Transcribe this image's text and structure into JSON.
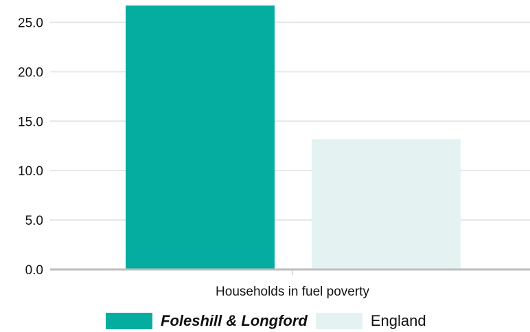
{
  "chart_data": {
    "type": "bar",
    "categories": [
      "Households in fuel poverty"
    ],
    "series": [
      {
        "name": "Foleshill & Longford",
        "values": [
          26.7
        ],
        "color": "#05ada0",
        "highlight": true
      },
      {
        "name": "England",
        "values": [
          13.2
        ],
        "color": "#e4f3f2",
        "highlight": false
      }
    ],
    "ylim": [
      0,
      26.7
    ],
    "yticks": [
      "0.0",
      "5.0",
      "10.0",
      "15.0",
      "20.0",
      "25.0"
    ],
    "ytick_values": [
      0,
      5,
      10,
      15,
      20,
      25
    ],
    "grid": true,
    "legend_position": "bottom",
    "axis_color": "#bdbdbd",
    "grid_color": "#e6e6e6"
  }
}
